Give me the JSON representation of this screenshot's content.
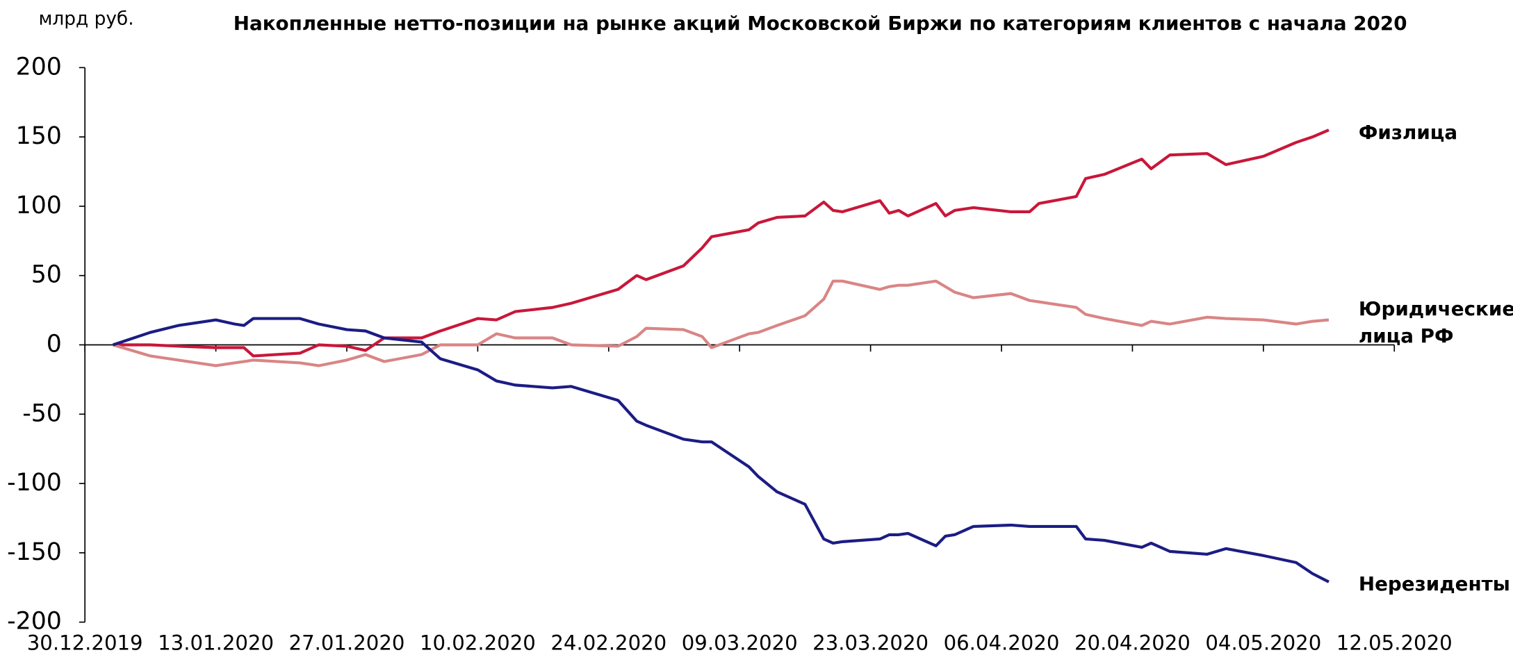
{
  "chart_data": {
    "type": "line",
    "title": "Накопленные нетто-позиции на рынке акций Московской Биржи по категориям клиентов с начала 2020",
    "y_unit": "млрд руб.",
    "xlim": [
      "30.12.2019",
      "12.05.2020"
    ],
    "xticks": [
      "30.12.2019",
      "13.01.2020",
      "27.01.2020",
      "10.02.2020",
      "24.02.2020",
      "09.03.2020",
      "23.03.2020",
      "06.04.2020",
      "20.04.2020",
      "04.05.2020",
      "12.05.2020"
    ],
    "ylim": [
      -200,
      200
    ],
    "yticks": [
      -200,
      -150,
      -100,
      -50,
      0,
      50,
      100,
      150,
      200
    ],
    "x": [
      "02.01.2020",
      "06.01.2020",
      "09.01.2020",
      "13.01.2020",
      "15.01.2020",
      "16.01.2020",
      "17.01.2020",
      "22.01.2020",
      "24.01.2020",
      "27.01.2020",
      "29.01.2020",
      "31.01.2020",
      "04.02.2020",
      "06.02.2020",
      "10.02.2020",
      "12.02.2020",
      "14.02.2020",
      "18.02.2020",
      "20.02.2020",
      "25.02.2020",
      "27.02.2020",
      "28.02.2020",
      "03.03.2020",
      "05.03.2020",
      "06.03.2020",
      "10.03.2020",
      "11.03.2020",
      "13.03.2020",
      "16.03.2020",
      "18.03.2020",
      "19.03.2020",
      "20.03.2020",
      "24.03.2020",
      "25.03.2020",
      "26.03.2020",
      "27.03.2020",
      "30.03.2020",
      "31.03.2020",
      "01.04.2020",
      "03.04.2020",
      "07.04.2020",
      "09.04.2020",
      "10.04.2020",
      "14.04.2020",
      "15.04.2020",
      "17.04.2020",
      "21.04.2020",
      "22.04.2020",
      "24.04.2020",
      "28.04.2020",
      "30.04.2020",
      "04.05.2020",
      "06.05.2020",
      "07.05.2020",
      "08.05.2020"
    ],
    "series": [
      {
        "name": "Физлица",
        "color": "#c8173a",
        "values": [
          0,
          0,
          -1,
          -2,
          -2,
          -2,
          -8,
          -6,
          0,
          -1,
          -4,
          5,
          5,
          10,
          19,
          18,
          24,
          27,
          30,
          40,
          50,
          47,
          57,
          70,
          78,
          83,
          88,
          92,
          93,
          103,
          97,
          96,
          104,
          95,
          97,
          93,
          102,
          93,
          97,
          99,
          96,
          96,
          102,
          107,
          120,
          123,
          134,
          127,
          137,
          138,
          130,
          136,
          146,
          150,
          155
        ]
      },
      {
        "name": "Юридические лица РФ",
        "color": "#d98585",
        "values": [
          0,
          -8,
          -11,
          -15,
          -13,
          -12,
          -11,
          -13,
          -15,
          -11,
          -7,
          -12,
          -7,
          0,
          0,
          8,
          5,
          5,
          0,
          -1,
          6,
          12,
          11,
          6,
          -2,
          8,
          9,
          14,
          21,
          33,
          46,
          46,
          40,
          42,
          43,
          43,
          46,
          42,
          38,
          34,
          37,
          32,
          31,
          27,
          22,
          19,
          14,
          17,
          15,
          20,
          19,
          18,
          15,
          17,
          18
        ]
      },
      {
        "name": "Нерезиденты",
        "color": "#1c1c84",
        "values": [
          0,
          9,
          14,
          18,
          15,
          14,
          19,
          19,
          15,
          11,
          10,
          5,
          2,
          -10,
          -18,
          -26,
          -29,
          -31,
          -30,
          -40,
          -55,
          -58,
          -68,
          -70,
          -70,
          -88,
          -95,
          -106,
          -115,
          -140,
          -143,
          -142,
          -140,
          -137,
          -137,
          -136,
          -145,
          -138,
          -137,
          -131,
          -130,
          -131,
          -131,
          -131,
          -140,
          -141,
          -146,
          -143,
          -149,
          -151,
          -147,
          -152,
          -157,
          -165,
          -171
        ]
      }
    ]
  }
}
